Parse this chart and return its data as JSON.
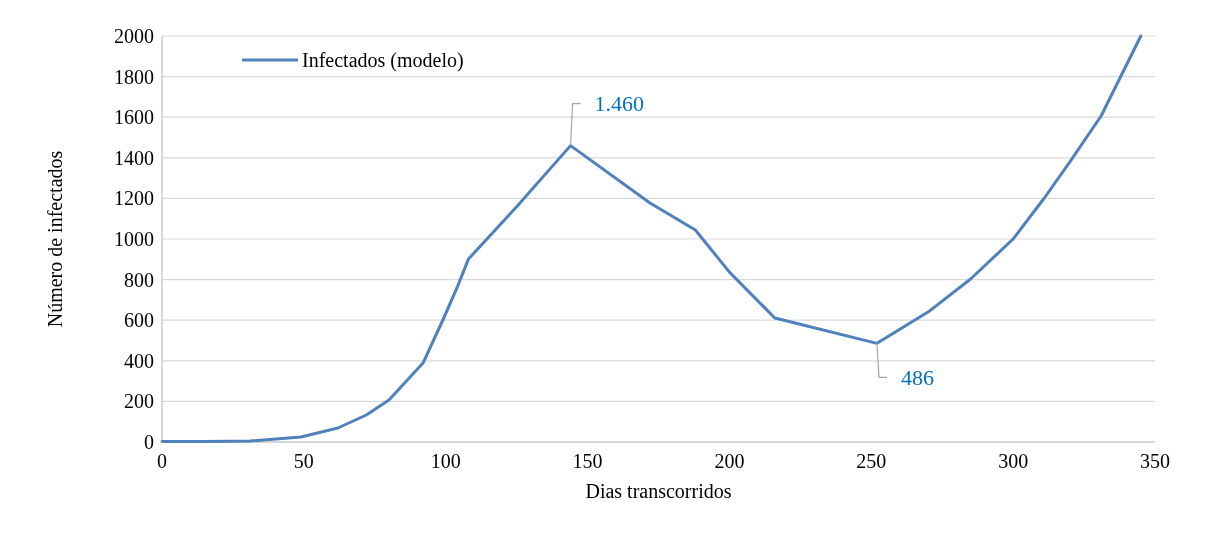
{
  "chart_data": {
    "type": "line",
    "xlabel": "Dias transcorridos",
    "ylabel": "Número de infectados",
    "x": [
      0,
      15,
      31,
      49,
      62,
      72,
      80,
      92,
      99,
      104,
      108,
      125,
      144,
      172,
      188,
      200,
      216,
      252,
      270,
      285,
      300,
      311,
      320,
      331,
      345
    ],
    "series": [
      {
        "name": "Infectados (modelo)",
        "color": "#4f81bd",
        "values": [
          2,
          3,
          5,
          25,
          69,
          133,
          207,
          389,
          601,
          760,
          901,
          1159,
          1460,
          1177,
          1044,
          837,
          611,
          486,
          640,
          803,
          1000,
          1202,
          1380,
          1606,
          2000
        ]
      }
    ],
    "xlim": [
      0,
      350
    ],
    "xticks": [
      0,
      50,
      100,
      150,
      200,
      250,
      300,
      350
    ],
    "ylim": [
      0,
      2000
    ],
    "yticks": [
      0,
      200,
      400,
      600,
      800,
      1000,
      1200,
      1400,
      1600,
      1800,
      2000
    ],
    "annotations": [
      {
        "text": "1.460",
        "x": 144,
        "y": 1460
      },
      {
        "text": "486",
        "x": 252,
        "y": 486
      }
    ],
    "grid": "y",
    "legend": "top left",
    "marker": "none",
    "line_style": "solid"
  }
}
